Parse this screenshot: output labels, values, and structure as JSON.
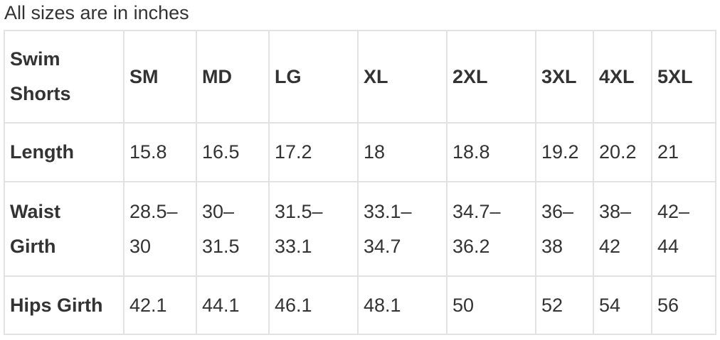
{
  "caption": "All sizes are in inches",
  "table": {
    "headers": [
      "Swim Shorts",
      "SM",
      "MD",
      "LG",
      "XL",
      "2XL",
      "3XL",
      "4XL",
      "5XL"
    ],
    "rows": [
      {
        "label": "Length",
        "values": [
          "15.8",
          "16.5",
          "17.2",
          "18",
          "18.8",
          "19.2",
          "20.2",
          "21"
        ]
      },
      {
        "label": "Waist Girth",
        "values": [
          "28.5–30",
          "30–31.5",
          "31.5–33.1",
          "33.1–34.7",
          "34.7–36.2",
          "36–38",
          "38–42",
          "42–44"
        ]
      },
      {
        "label": "Hips Girth",
        "values": [
          "42.1",
          "44.1",
          "46.1",
          "48.1",
          "50",
          "52",
          "54",
          "56"
        ]
      }
    ]
  }
}
